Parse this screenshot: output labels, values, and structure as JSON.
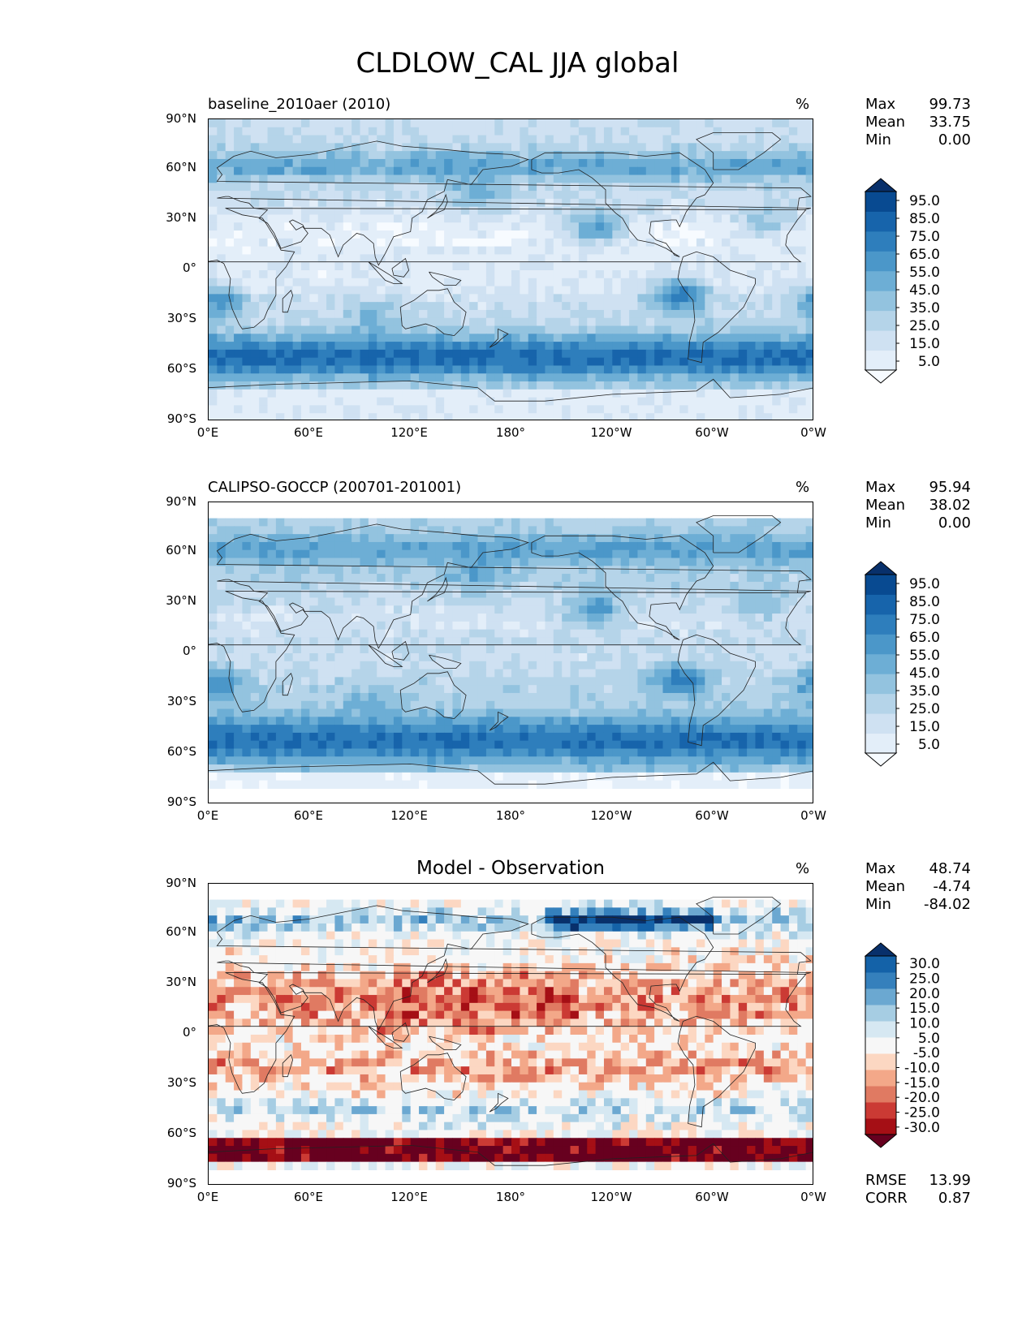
{
  "figure_title": "CLDLOW_CAL JJA global",
  "units": "%",
  "y_ticks": [
    "90°N",
    "60°N",
    "30°N",
    "0°",
    "30°S",
    "60°S",
    "90°S"
  ],
  "x_ticks": [
    "0°E",
    "60°E",
    "120°E",
    "180°",
    "120°W",
    "60°W",
    "0°W"
  ],
  "stat_labels": {
    "max": "Max",
    "mean": "Mean",
    "min": "Min",
    "rmse": "RMSE",
    "corr": "CORR"
  },
  "colors": {
    "blues": [
      "#f7fbff",
      "#e3eef9",
      "#cfe1f2",
      "#b5d4e9",
      "#93c3df",
      "#6daed5",
      "#4b97c9",
      "#2e7ebc",
      "#1764ab",
      "#084a91",
      "#08306b"
    ],
    "rdbu": [
      "#67001f",
      "#a50f15",
      "#cb3a34",
      "#e07a62",
      "#f3a889",
      "#fcd7c2",
      "#f7f7f7",
      "#d6e8f2",
      "#a6cde3",
      "#6ba8d1",
      "#3580bc",
      "#1462a8",
      "#08306b"
    ],
    "coast": "#222222"
  },
  "panels": [
    {
      "title": "baseline_2010aer (2010)",
      "title_centered": false,
      "stats": {
        "max": "99.73",
        "mean": "33.75",
        "min": "0.00"
      },
      "colorbar_labels": [
        "95.0",
        "85.0",
        "75.0",
        "65.0",
        "55.0",
        "45.0",
        "35.0",
        "25.0",
        "15.0",
        "5.0"
      ],
      "palette": "blues",
      "kind": "model"
    },
    {
      "title": "CALIPSO-GOCCP (200701-201001)",
      "title_centered": false,
      "stats": {
        "max": "95.94",
        "mean": "38.02",
        "min": "0.00"
      },
      "colorbar_labels": [
        "95.0",
        "85.0",
        "75.0",
        "65.0",
        "55.0",
        "45.0",
        "35.0",
        "25.0",
        "15.0",
        "5.0"
      ],
      "palette": "blues",
      "kind": "obs"
    },
    {
      "title": "Model - Observation",
      "title_centered": true,
      "stats": {
        "max": "48.74",
        "mean": "-4.74",
        "min": "-84.02"
      },
      "colorbar_labels": [
        "30.0",
        "25.0",
        "20.0",
        "15.0",
        "10.0",
        "5.0",
        "-5.0",
        "-10.0",
        "-15.0",
        "-20.0",
        "-25.0",
        "-30.0"
      ],
      "palette": "rdbu",
      "kind": "diff",
      "rmse": "13.99",
      "corr": "0.87"
    }
  ]
}
